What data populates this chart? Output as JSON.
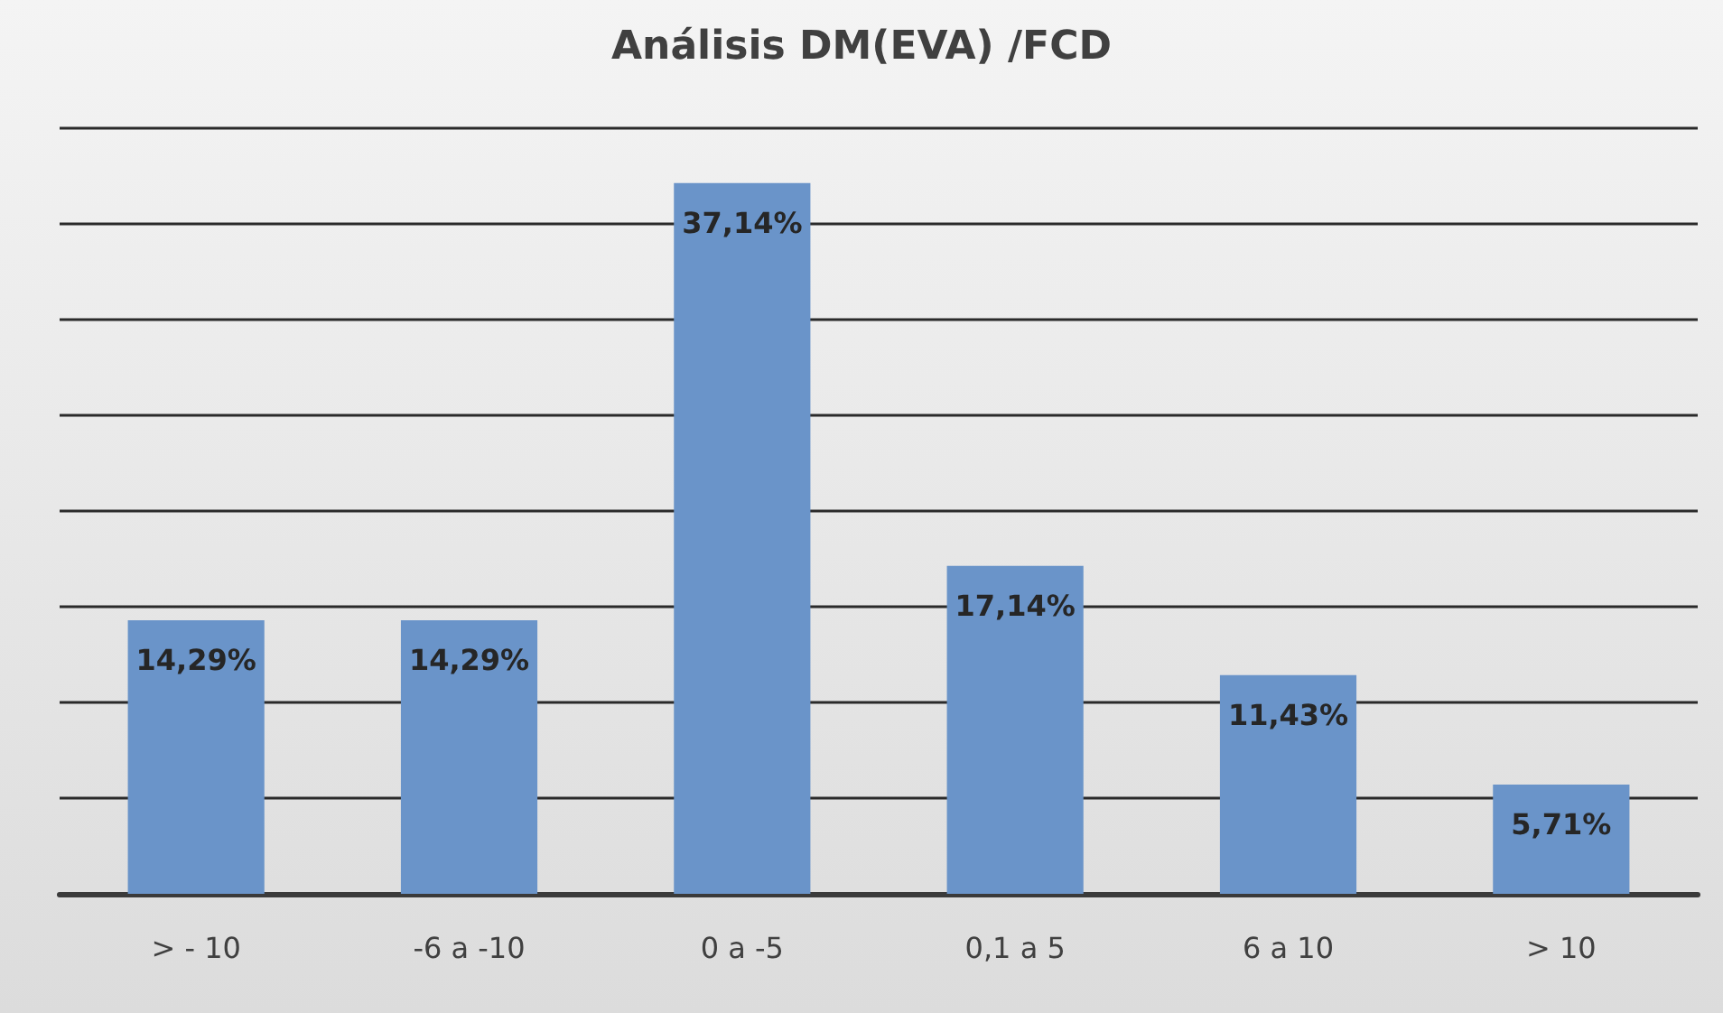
{
  "chart_data": {
    "type": "bar",
    "title": "Análisis DM(EVA) /FCD",
    "categories": [
      "> - 10",
      "-6 a -10",
      "0 a -5",
      "0,1 a 5",
      "6 a 10",
      "> 10"
    ],
    "values": [
      14.29,
      14.29,
      37.14,
      17.14,
      11.43,
      5.71
    ],
    "value_labels": [
      "14,29%",
      "14,29%",
      "37,14%",
      "17,14%",
      "11,43%",
      "5,71%"
    ],
    "color": "#6a94c9",
    "ylim": [
      0,
      40
    ],
    "yticks": [
      {
        "value": 0,
        "label": null
      },
      {
        "value": 5,
        "label": null
      },
      {
        "value": 10,
        "label": null
      },
      {
        "value": 15,
        "label": null
      },
      {
        "value": 20,
        "label": null
      },
      {
        "value": 25,
        "label": null
      },
      {
        "value": 30,
        "label": null
      },
      {
        "value": 35,
        "label": null
      },
      {
        "value": 40,
        "label": null
      }
    ],
    "grid": "y",
    "tick_labels": "x"
  }
}
